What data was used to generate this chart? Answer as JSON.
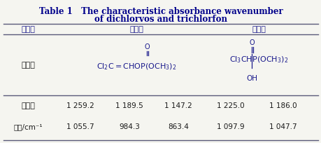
{
  "title_line1": "Table 1   The characteristic absorbance wavenumber",
  "title_line2": "of dichlorvos and trichlorfon",
  "title_color": "#00008B",
  "col_header_color": "#1a1a8c",
  "bg_color": "#f5f5f0",
  "col_headers": [
    "农药名",
    "敌敌畏",
    "敌百虫"
  ],
  "row1_label": "结构式",
  "row2_label": "吸收峰",
  "row3_label": "位置/cm⁻¹",
  "dichlorvos_vals": [
    "1 259.2",
    "1 189.5",
    "1 147.2"
  ],
  "dichlorvos_vals2": [
    "1 055.7",
    "984.3",
    "863.4"
  ],
  "trichlorfon_vals": [
    "1 225.0",
    "1 186.0"
  ],
  "trichlorfon_vals2": [
    "1 097.9",
    "1 047.7"
  ],
  "line_color": "#5a5a7a",
  "text_color": "#1a1a1a",
  "struct_color": "#1a1a8c"
}
